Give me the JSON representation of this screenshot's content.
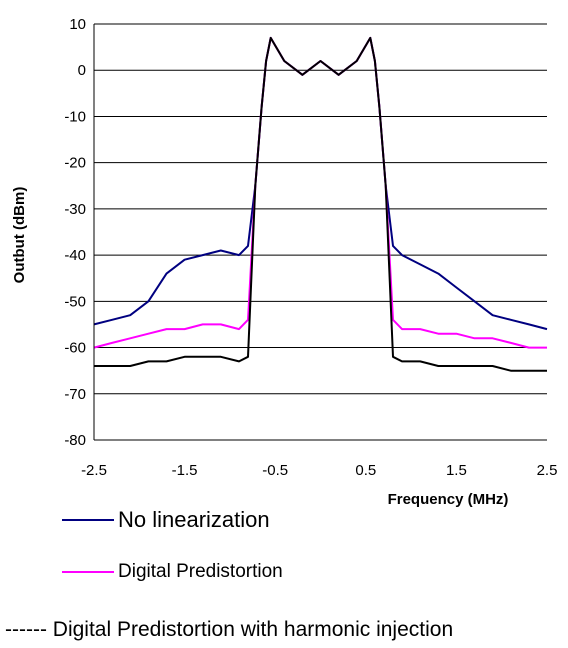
{
  "chart_data": {
    "type": "line",
    "title": "",
    "xlabel": "Frequency (MHz)",
    "ylabel": "Outbut (dBm)",
    "xlim": [
      -2.5,
      2.5
    ],
    "ylim": [
      -80,
      10
    ],
    "x_ticks": [
      "-2.5",
      "-1.5",
      "-0.5",
      "0.5",
      "1.5",
      "2.5"
    ],
    "y_ticks": [
      "10",
      "0",
      "-10",
      "-20",
      "-30",
      "-40",
      "-50",
      "-60",
      "-70",
      "-80"
    ],
    "grid": "horizontal",
    "series": [
      {
        "name": "No linearization",
        "color": "#000080",
        "points": [
          [
            -2.5,
            -55
          ],
          [
            -2.3,
            -54
          ],
          [
            -2.1,
            -53
          ],
          [
            -1.9,
            -50
          ],
          [
            -1.7,
            -44
          ],
          [
            -1.5,
            -41
          ],
          [
            -1.3,
            -40
          ],
          [
            -1.1,
            -39
          ],
          [
            -0.9,
            -40
          ],
          [
            -0.8,
            -38
          ],
          [
            -0.72,
            -25
          ],
          [
            -0.65,
            -8
          ],
          [
            -0.6,
            2
          ],
          [
            -0.55,
            7
          ],
          [
            -0.4,
            2
          ],
          [
            -0.2,
            -1
          ],
          [
            0,
            2
          ],
          [
            0.2,
            -1
          ],
          [
            0.4,
            2
          ],
          [
            0.55,
            7
          ],
          [
            0.6,
            2
          ],
          [
            0.65,
            -8
          ],
          [
            0.72,
            -25
          ],
          [
            0.8,
            -38
          ],
          [
            0.9,
            -40
          ],
          [
            1.1,
            -42
          ],
          [
            1.3,
            -44
          ],
          [
            1.5,
            -47
          ],
          [
            1.7,
            -50
          ],
          [
            1.9,
            -53
          ],
          [
            2.1,
            -54
          ],
          [
            2.3,
            -55
          ],
          [
            2.5,
            -56
          ]
        ]
      },
      {
        "name": "Digital Predistortion",
        "color": "#ff00ff",
        "points": [
          [
            -2.5,
            -60
          ],
          [
            -2.3,
            -59
          ],
          [
            -2.1,
            -58
          ],
          [
            -1.9,
            -57
          ],
          [
            -1.7,
            -56
          ],
          [
            -1.5,
            -56
          ],
          [
            -1.3,
            -55
          ],
          [
            -1.1,
            -55
          ],
          [
            -0.9,
            -56
          ],
          [
            -0.8,
            -54
          ],
          [
            -0.72,
            -25
          ],
          [
            -0.65,
            -8
          ],
          [
            -0.6,
            2
          ],
          [
            -0.55,
            7
          ],
          [
            -0.4,
            2
          ],
          [
            -0.2,
            -1
          ],
          [
            0,
            2
          ],
          [
            0.2,
            -1
          ],
          [
            0.4,
            2
          ],
          [
            0.55,
            7
          ],
          [
            0.6,
            2
          ],
          [
            0.65,
            -8
          ],
          [
            0.72,
            -25
          ],
          [
            0.8,
            -54
          ],
          [
            0.9,
            -56
          ],
          [
            1.1,
            -56
          ],
          [
            1.3,
            -57
          ],
          [
            1.5,
            -57
          ],
          [
            1.7,
            -58
          ],
          [
            1.9,
            -58
          ],
          [
            2.1,
            -59
          ],
          [
            2.3,
            -60
          ],
          [
            2.5,
            -60
          ]
        ]
      },
      {
        "name": "Digital Predistortion with harmonic injection",
        "color": "#000000",
        "points": [
          [
            -2.5,
            -64
          ],
          [
            -2.3,
            -64
          ],
          [
            -2.1,
            -64
          ],
          [
            -1.9,
            -63
          ],
          [
            -1.7,
            -63
          ],
          [
            -1.5,
            -62
          ],
          [
            -1.3,
            -62
          ],
          [
            -1.1,
            -62
          ],
          [
            -0.9,
            -63
          ],
          [
            -0.8,
            -62
          ],
          [
            -0.72,
            -25
          ],
          [
            -0.65,
            -8
          ],
          [
            -0.6,
            2
          ],
          [
            -0.55,
            7
          ],
          [
            -0.4,
            2
          ],
          [
            -0.2,
            -1
          ],
          [
            0,
            2
          ],
          [
            0.2,
            -1
          ],
          [
            0.4,
            2
          ],
          [
            0.55,
            7
          ],
          [
            0.6,
            2
          ],
          [
            0.65,
            -8
          ],
          [
            0.72,
            -25
          ],
          [
            0.8,
            -62
          ],
          [
            0.9,
            -63
          ],
          [
            1.1,
            -63
          ],
          [
            1.3,
            -64
          ],
          [
            1.5,
            -64
          ],
          [
            1.7,
            -64
          ],
          [
            1.9,
            -64
          ],
          [
            2.1,
            -65
          ],
          [
            2.3,
            -65
          ],
          [
            2.5,
            -65
          ]
        ]
      }
    ]
  },
  "legend": {
    "item1": "No linearization",
    "item2": "Digital Predistortion",
    "item3": "------ Digital Predistortion with harmonic injection"
  }
}
